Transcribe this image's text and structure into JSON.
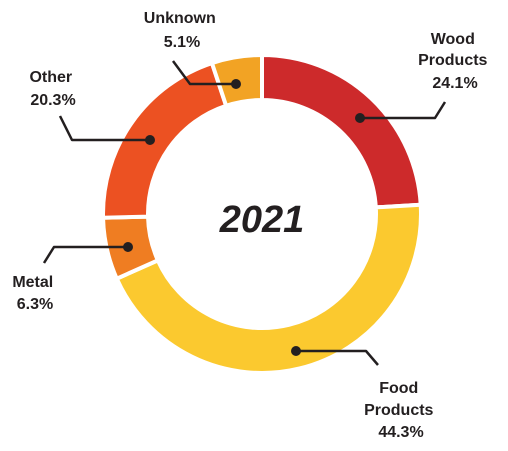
{
  "chart_data": {
    "type": "pie",
    "title": "2021",
    "slices": [
      {
        "lines": [
          "Wood",
          "Products"
        ],
        "pct_label": "24.1%",
        "value": 24.1,
        "color": "#cd2a2b"
      },
      {
        "lines": [
          "Food",
          "Products"
        ],
        "pct_label": "44.3%",
        "value": 44.3,
        "color": "#fbc92f"
      },
      {
        "lines": [
          "Metal"
        ],
        "pct_label": "6.3%",
        "value": 6.3,
        "color": "#ef7d22"
      },
      {
        "lines": [
          "Other"
        ],
        "pct_label": "20.3%",
        "value": 20.3,
        "color": "#ec5122"
      },
      {
        "lines": [
          "Unknown"
        ],
        "pct_label": "5.1%",
        "value": 5.1,
        "color": "#f2a324"
      }
    ]
  }
}
